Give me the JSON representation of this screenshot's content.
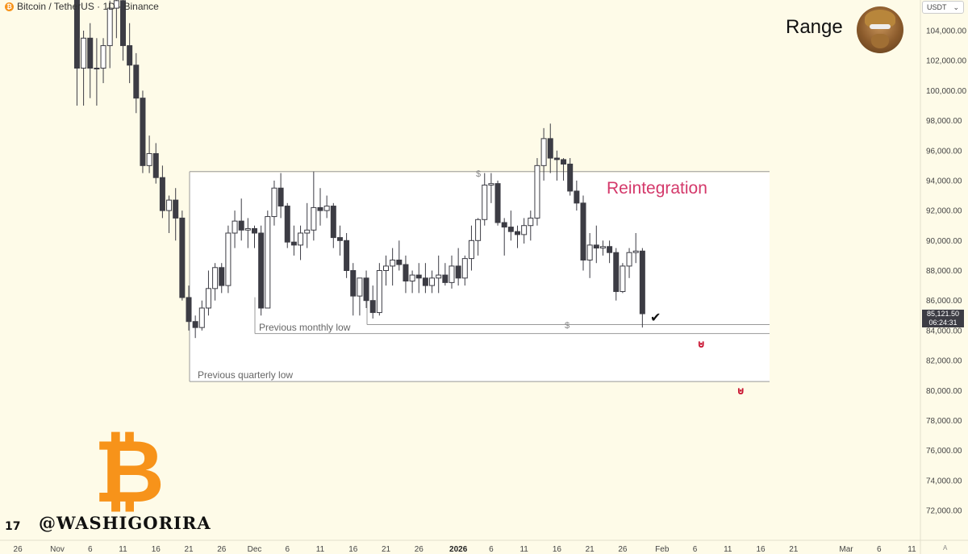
{
  "header": {
    "symbol": "Bitcoin / TetherUS · 1D · Binance",
    "btc_glyph": "₿",
    "currency": "USDT",
    "currency_caret": "⌄"
  },
  "annotations": {
    "range": "Range",
    "reintegration": "Reintegration",
    "check": "✔",
    "magnet": "⊍",
    "previous_monthly_low": "Previous monthly low",
    "previous_quarterly_low": "Previous quarterly low",
    "dollar": "$"
  },
  "branding": {
    "logo_glyph": "₿",
    "watermark": "@WASHIGORIRA",
    "tradingview": "17",
    "auto": "A"
  },
  "last_price": {
    "price": "85,121.50",
    "countdown": "06:24:31"
  },
  "colors": {
    "background": "#fefbe8",
    "bear_candle": "#3c3c44",
    "bull_candle": "#ffffff",
    "range_box": "#ffffff",
    "reintegration": "#d4386a",
    "btc_orange": "#f7931a",
    "magnet": "#c8102e"
  },
  "chart_data": {
    "type": "candlestick",
    "title": "Bitcoin / TetherUS · 1D · Binance",
    "ylim": [
      70500,
      106000
    ],
    "y_ticks": [
      "104,000.00",
      "102,000.00",
      "100,000.00",
      "98,000.00",
      "96,000.00",
      "94,000.00",
      "92,000.00",
      "90,000.00",
      "88,000.00",
      "86,000.00",
      "84,000.00",
      "82,000.00",
      "80,000.00",
      "78,000.00",
      "76,000.00",
      "74,000.00",
      "72,000.00"
    ],
    "y_tick_values": [
      104000,
      102000,
      100000,
      98000,
      96000,
      94000,
      92000,
      90000,
      88000,
      86000,
      84000,
      82000,
      80000,
      78000,
      76000,
      74000,
      72000
    ],
    "x_labels": [
      "26",
      "Nov",
      "6",
      "11",
      "16",
      "21",
      "26",
      "Dec",
      "6",
      "11",
      "16",
      "21",
      "26",
      "2026",
      "6",
      "11",
      "16",
      "21",
      "26",
      "Feb",
      "6",
      "11",
      "16",
      "21",
      "Mar",
      "6",
      "11"
    ],
    "x_label_days": [
      -6,
      0,
      5,
      10,
      15,
      20,
      25,
      30,
      35,
      40,
      45,
      50,
      55,
      61,
      66,
      71,
      76,
      81,
      86,
      92,
      97,
      102,
      107,
      112,
      120,
      125,
      130
    ],
    "bold_labels": [
      "2026"
    ],
    "levels": {
      "range_high": 94600,
      "monthly_low": 83800,
      "quarterly_low": 80600,
      "liquidity_low": 84400
    },
    "targets": [
      83200,
      80000
    ],
    "candles": [
      {
        "d": 3,
        "o": 106500,
        "h": 108000,
        "l": 99000,
        "c": 101500
      },
      {
        "d": 4,
        "o": 101500,
        "h": 104000,
        "l": 99000,
        "c": 103500
      },
      {
        "d": 5,
        "o": 103500,
        "h": 104500,
        "l": 99500,
        "c": 101500
      },
      {
        "d": 6,
        "o": 101500,
        "h": 103500,
        "l": 99000,
        "c": 101500
      },
      {
        "d": 7,
        "o": 101500,
        "h": 103500,
        "l": 100500,
        "c": 103000
      },
      {
        "d": 8,
        "o": 103000,
        "h": 106000,
        "l": 101500,
        "c": 105500
      },
      {
        "d": 9,
        "o": 105500,
        "h": 107000,
        "l": 103500,
        "c": 106000
      },
      {
        "d": 10,
        "o": 106000,
        "h": 107500,
        "l": 102000,
        "c": 103000
      },
      {
        "d": 11,
        "o": 103000,
        "h": 104500,
        "l": 100500,
        "c": 101700
      },
      {
        "d": 12,
        "o": 101700,
        "h": 102500,
        "l": 98500,
        "c": 99500
      },
      {
        "d": 13,
        "o": 99500,
        "h": 100000,
        "l": 94500,
        "c": 95000
      },
      {
        "d": 14,
        "o": 95000,
        "h": 97000,
        "l": 94500,
        "c": 95800
      },
      {
        "d": 15,
        "o": 95800,
        "h": 96500,
        "l": 93800,
        "c": 94200
      },
      {
        "d": 16,
        "o": 94200,
        "h": 95000,
        "l": 91500,
        "c": 92000
      },
      {
        "d": 17,
        "o": 92000,
        "h": 93000,
        "l": 90500,
        "c": 92700
      },
      {
        "d": 18,
        "o": 92700,
        "h": 93500,
        "l": 90000,
        "c": 91500
      },
      {
        "d": 19,
        "o": 91500,
        "h": 92000,
        "l": 86000,
        "c": 86200
      },
      {
        "d": 20,
        "o": 86200,
        "h": 87000,
        "l": 84000,
        "c": 84600
      },
      {
        "d": 21,
        "o": 84600,
        "h": 85000,
        "l": 83500,
        "c": 84200
      },
      {
        "d": 22,
        "o": 84200,
        "h": 86000,
        "l": 84000,
        "c": 85500
      },
      {
        "d": 23,
        "o": 85500,
        "h": 88000,
        "l": 85000,
        "c": 86800
      },
      {
        "d": 24,
        "o": 86800,
        "h": 88500,
        "l": 86000,
        "c": 88200
      },
      {
        "d": 25,
        "o": 88200,
        "h": 88500,
        "l": 86500,
        "c": 87000
      },
      {
        "d": 26,
        "o": 87000,
        "h": 91000,
        "l": 86500,
        "c": 90500
      },
      {
        "d": 27,
        "o": 90500,
        "h": 92000,
        "l": 89500,
        "c": 91300
      },
      {
        "d": 28,
        "o": 91300,
        "h": 92800,
        "l": 90000,
        "c": 90700
      },
      {
        "d": 29,
        "o": 90700,
        "h": 91500,
        "l": 89500,
        "c": 90800
      },
      {
        "d": 30,
        "o": 90800,
        "h": 91000,
        "l": 89500,
        "c": 90500
      },
      {
        "d": 31,
        "o": 90500,
        "h": 91000,
        "l": 85000,
        "c": 85500
      },
      {
        "d": 32,
        "o": 85500,
        "h": 92000,
        "l": 85500,
        "c": 91600
      },
      {
        "d": 33,
        "o": 91600,
        "h": 94000,
        "l": 91000,
        "c": 93500
      },
      {
        "d": 34,
        "o": 93500,
        "h": 94500,
        "l": 91500,
        "c": 92300
      },
      {
        "d": 35,
        "o": 92300,
        "h": 92500,
        "l": 89500,
        "c": 89900
      },
      {
        "d": 36,
        "o": 89900,
        "h": 91000,
        "l": 89000,
        "c": 89700
      },
      {
        "d": 37,
        "o": 89700,
        "h": 91000,
        "l": 88700,
        "c": 90500
      },
      {
        "d": 38,
        "o": 90500,
        "h": 92500,
        "l": 89500,
        "c": 90700
      },
      {
        "d": 39,
        "o": 90700,
        "h": 94600,
        "l": 90000,
        "c": 92200
      },
      {
        "d": 40,
        "o": 92200,
        "h": 93500,
        "l": 91000,
        "c": 92000
      },
      {
        "d": 41,
        "o": 92000,
        "h": 93000,
        "l": 91500,
        "c": 92300
      },
      {
        "d": 42,
        "o": 92300,
        "h": 92500,
        "l": 89500,
        "c": 90200
      },
      {
        "d": 43,
        "o": 90200,
        "h": 91000,
        "l": 89000,
        "c": 90000
      },
      {
        "d": 44,
        "o": 90000,
        "h": 90500,
        "l": 87500,
        "c": 88000
      },
      {
        "d": 45,
        "o": 88000,
        "h": 88500,
        "l": 85000,
        "c": 86300
      },
      {
        "d": 46,
        "o": 86300,
        "h": 87500,
        "l": 85000,
        "c": 87500
      },
      {
        "d": 47,
        "o": 87500,
        "h": 88000,
        "l": 85500,
        "c": 86000
      },
      {
        "d": 48,
        "o": 86000,
        "h": 87000,
        "l": 84800,
        "c": 85200
      },
      {
        "d": 49,
        "o": 85200,
        "h": 88500,
        "l": 85000,
        "c": 88000
      },
      {
        "d": 50,
        "o": 88000,
        "h": 89000,
        "l": 87000,
        "c": 88300
      },
      {
        "d": 51,
        "o": 88300,
        "h": 89500,
        "l": 87000,
        "c": 88700
      },
      {
        "d": 52,
        "o": 88700,
        "h": 90000,
        "l": 88000,
        "c": 88400
      },
      {
        "d": 53,
        "o": 88400,
        "h": 89000,
        "l": 86500,
        "c": 87300
      },
      {
        "d": 54,
        "o": 87300,
        "h": 88000,
        "l": 86500,
        "c": 87700
      },
      {
        "d": 55,
        "o": 87700,
        "h": 88500,
        "l": 86500,
        "c": 87500
      },
      {
        "d": 56,
        "o": 87500,
        "h": 88500,
        "l": 86500,
        "c": 87000
      },
      {
        "d": 57,
        "o": 87000,
        "h": 88000,
        "l": 86500,
        "c": 87500
      },
      {
        "d": 58,
        "o": 87500,
        "h": 89000,
        "l": 86500,
        "c": 87700
      },
      {
        "d": 59,
        "o": 87700,
        "h": 88500,
        "l": 87000,
        "c": 87200
      },
      {
        "d": 60,
        "o": 87200,
        "h": 89000,
        "l": 86800,
        "c": 88300
      },
      {
        "d": 61,
        "o": 88300,
        "h": 89500,
        "l": 87000,
        "c": 87500
      },
      {
        "d": 62,
        "o": 87500,
        "h": 89000,
        "l": 87000,
        "c": 88800
      },
      {
        "d": 63,
        "o": 88800,
        "h": 91000,
        "l": 88000,
        "c": 90000
      },
      {
        "d": 64,
        "o": 90000,
        "h": 91500,
        "l": 89000,
        "c": 91400
      },
      {
        "d": 65,
        "o": 91400,
        "h": 94500,
        "l": 91000,
        "c": 93700
      },
      {
        "d": 66,
        "o": 93700,
        "h": 94500,
        "l": 92500,
        "c": 93800
      },
      {
        "d": 67,
        "o": 93800,
        "h": 94000,
        "l": 91000,
        "c": 91200
      },
      {
        "d": 68,
        "o": 91200,
        "h": 91500,
        "l": 89000,
        "c": 90900
      },
      {
        "d": 69,
        "o": 90900,
        "h": 92000,
        "l": 90000,
        "c": 90600
      },
      {
        "d": 70,
        "o": 90600,
        "h": 91000,
        "l": 89500,
        "c": 90400
      },
      {
        "d": 71,
        "o": 90400,
        "h": 91500,
        "l": 89800,
        "c": 91000
      },
      {
        "d": 72,
        "o": 91000,
        "h": 92000,
        "l": 90000,
        "c": 91500
      },
      {
        "d": 73,
        "o": 91500,
        "h": 95500,
        "l": 91000,
        "c": 95000
      },
      {
        "d": 74,
        "o": 95000,
        "h": 97500,
        "l": 94000,
        "c": 96800
      },
      {
        "d": 75,
        "o": 96800,
        "h": 97800,
        "l": 94500,
        "c": 95500
      },
      {
        "d": 76,
        "o": 95500,
        "h": 96000,
        "l": 94000,
        "c": 95400
      },
      {
        "d": 77,
        "o": 95400,
        "h": 95500,
        "l": 94000,
        "c": 95100
      },
      {
        "d": 78,
        "o": 95100,
        "h": 95500,
        "l": 93000,
        "c": 93300
      },
      {
        "d": 79,
        "o": 93300,
        "h": 94000,
        "l": 92000,
        "c": 92500
      },
      {
        "d": 80,
        "o": 92500,
        "h": 93000,
        "l": 88000,
        "c": 88700
      },
      {
        "d": 81,
        "o": 88700,
        "h": 90500,
        "l": 87500,
        "c": 89700
      },
      {
        "d": 82,
        "o": 89700,
        "h": 91000,
        "l": 88500,
        "c": 89500
      },
      {
        "d": 83,
        "o": 89500,
        "h": 90000,
        "l": 89000,
        "c": 89600
      },
      {
        "d": 84,
        "o": 89600,
        "h": 90000,
        "l": 88500,
        "c": 89200
      },
      {
        "d": 85,
        "o": 89200,
        "h": 89500,
        "l": 86000,
        "c": 86600
      },
      {
        "d": 86,
        "o": 86600,
        "h": 88500,
        "l": 86500,
        "c": 88300
      },
      {
        "d": 87,
        "o": 88300,
        "h": 89500,
        "l": 87500,
        "c": 89200
      },
      {
        "d": 88,
        "o": 89200,
        "h": 90500,
        "l": 88500,
        "c": 89300
      },
      {
        "d": 89,
        "o": 89300,
        "h": 89500,
        "l": 84200,
        "c": 85121.5
      }
    ]
  }
}
